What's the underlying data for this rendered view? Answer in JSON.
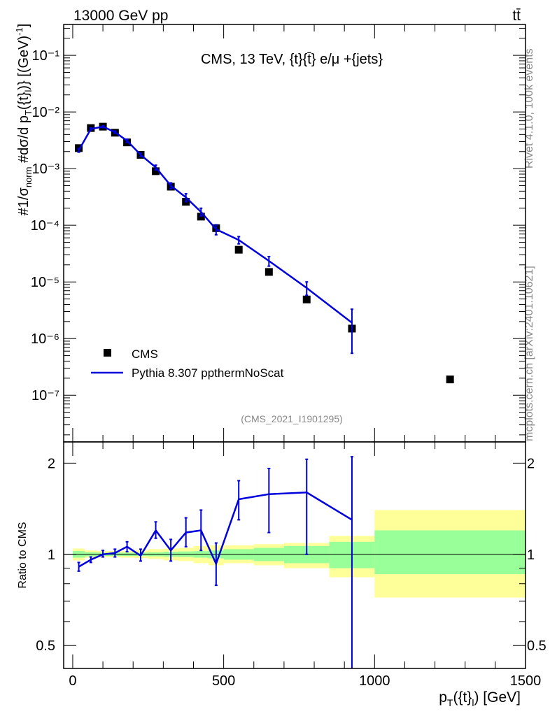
{
  "header": {
    "process": "13000 GeV pp",
    "final_state": "tt̄"
  },
  "side": {
    "rivet": "Rivet 4.1.0,  100k events",
    "source": "mcplots.cern.ch [arXiv:2401.10621]"
  },
  "chart_data": {
    "type": "line",
    "title": "CMS, 13 TeV, {t}{t̄} e/μ +{jets}",
    "analysis_id": "(CMS_2021_I1901295)",
    "xlabel": "p_T({t}_l) [GeV]",
    "ylabel": "#1/σ_norm #dσ/d p_T({t}_l)} [(GeV)^-1]",
    "xlim": [
      -30,
      1500
    ],
    "xticks": [
      "0",
      "500",
      "1000",
      "1500"
    ],
    "main": {
      "yscale": "log",
      "ylim": [
        1.5e-08,
        0.35
      ],
      "yticks": [
        "10⁻⁷",
        "10⁻⁶",
        "10⁻⁵",
        "10⁻⁴",
        "10⁻³",
        "10⁻²",
        "10⁻¹"
      ],
      "legend": {
        "position": "bottom-left",
        "entries": [
          "CMS",
          "Pythia 8.307 ppthermNoScat"
        ]
      },
      "data": {
        "name": "CMS",
        "points": [
          {
            "x": 20,
            "y": 0.0023
          },
          {
            "x": 60,
            "y": 0.0052
          },
          {
            "x": 100,
            "y": 0.0055
          },
          {
            "x": 140,
            "y": 0.0043
          },
          {
            "x": 180,
            "y": 0.0029
          },
          {
            "x": 225,
            "y": 0.00175
          },
          {
            "x": 275,
            "y": 0.0009
          },
          {
            "x": 325,
            "y": 0.00048
          },
          {
            "x": 375,
            "y": 0.00026
          },
          {
            "x": 425,
            "y": 0.000142
          },
          {
            "x": 475,
            "y": 8.9e-05
          },
          {
            "x": 550,
            "y": 3.7e-05
          },
          {
            "x": 650,
            "y": 1.5e-05
          },
          {
            "x": 775,
            "y": 4.9e-06
          },
          {
            "x": 925,
            "y": 1.5e-06
          },
          {
            "x": 1250,
            "y": 1.9e-07
          }
        ]
      },
      "mc": {
        "name": "Pythia 8.307 ppthermNoScat",
        "points": [
          {
            "x": 20,
            "y": 0.0021,
            "lo": 0.00195,
            "hi": 0.00225
          },
          {
            "x": 60,
            "y": 0.005,
            "lo": 0.0048,
            "hi": 0.0052
          },
          {
            "x": 100,
            "y": 0.0055,
            "lo": 0.0053,
            "hi": 0.0057
          },
          {
            "x": 140,
            "y": 0.0044,
            "lo": 0.0042,
            "hi": 0.0046
          },
          {
            "x": 180,
            "y": 0.0031,
            "lo": 0.0029,
            "hi": 0.0033
          },
          {
            "x": 225,
            "y": 0.00175,
            "lo": 0.00163,
            "hi": 0.00187
          },
          {
            "x": 275,
            "y": 0.00105,
            "lo": 0.00095,
            "hi": 0.00115
          },
          {
            "x": 325,
            "y": 0.0005,
            "lo": 0.00044,
            "hi": 0.00056
          },
          {
            "x": 375,
            "y": 0.00031,
            "lo": 0.00026,
            "hi": 0.00036
          },
          {
            "x": 425,
            "y": 0.000172,
            "lo": 0.000145,
            "hi": 0.0002
          },
          {
            "x": 475,
            "y": 8.5e-05,
            "lo": 6.8e-05,
            "hi": 0.000102
          },
          {
            "x": 550,
            "y": 5.5e-05,
            "lo": 4.7e-05,
            "hi": 6.3e-05
          },
          {
            "x": 650,
            "y": 2.35e-05,
            "lo": 1.9e-05,
            "hi": 2.8e-05
          },
          {
            "x": 775,
            "y": 7.8e-06,
            "lo": 5.8e-06,
            "hi": 1e-05
          },
          {
            "x": 925,
            "y": 1.9e-06,
            "lo": 5.5e-07,
            "hi": 3.3e-06
          }
        ]
      }
    },
    "ratio": {
      "ylabel": "Ratio to CMS",
      "yscale": "log",
      "ylim": [
        0.42,
        2.35
      ],
      "yticks": [
        "0.5",
        "1",
        "2"
      ],
      "bands": [
        {
          "x0": 0,
          "x1": 40,
          "stat_lo": 0.975,
          "stat_hi": 1.025,
          "tot_lo": 0.955,
          "tot_hi": 1.045
        },
        {
          "x0": 40,
          "x1": 80,
          "stat_lo": 0.985,
          "stat_hi": 1.015,
          "tot_lo": 0.975,
          "tot_hi": 1.03
        },
        {
          "x0": 80,
          "x1": 120,
          "stat_lo": 0.988,
          "stat_hi": 1.012,
          "tot_lo": 0.978,
          "tot_hi": 1.025
        },
        {
          "x0": 120,
          "x1": 160,
          "stat_lo": 0.988,
          "stat_hi": 1.012,
          "tot_lo": 0.978,
          "tot_hi": 1.025
        },
        {
          "x0": 160,
          "x1": 200,
          "stat_lo": 0.988,
          "stat_hi": 1.012,
          "tot_lo": 0.975,
          "tot_hi": 1.025
        },
        {
          "x0": 200,
          "x1": 250,
          "stat_lo": 0.988,
          "stat_hi": 1.012,
          "tot_lo": 0.972,
          "tot_hi": 1.03
        },
        {
          "x0": 250,
          "x1": 300,
          "stat_lo": 0.985,
          "stat_hi": 1.015,
          "tot_lo": 0.965,
          "tot_hi": 1.04
        },
        {
          "x0": 300,
          "x1": 350,
          "stat_lo": 0.982,
          "stat_hi": 1.02,
          "tot_lo": 0.955,
          "tot_hi": 1.045
        },
        {
          "x0": 350,
          "x1": 400,
          "stat_lo": 0.98,
          "stat_hi": 1.022,
          "tot_lo": 0.95,
          "tot_hi": 1.05
        },
        {
          "x0": 400,
          "x1": 450,
          "stat_lo": 0.975,
          "stat_hi": 1.025,
          "tot_lo": 0.935,
          "tot_hi": 1.065
        },
        {
          "x0": 450,
          "x1": 500,
          "stat_lo": 0.97,
          "stat_hi": 1.03,
          "tot_lo": 0.92,
          "tot_hi": 1.07
        },
        {
          "x0": 500,
          "x1": 600,
          "stat_lo": 0.96,
          "stat_hi": 1.04,
          "tot_lo": 0.935,
          "tot_hi": 1.07
        },
        {
          "x0": 600,
          "x1": 700,
          "stat_lo": 0.95,
          "stat_hi": 1.05,
          "tot_lo": 0.92,
          "tot_hi": 1.08
        },
        {
          "x0": 700,
          "x1": 850,
          "stat_lo": 0.935,
          "stat_hi": 1.065,
          "tot_lo": 0.9,
          "tot_hi": 1.09
        },
        {
          "x0": 850,
          "x1": 1000,
          "stat_lo": 0.9,
          "stat_hi": 1.1,
          "tot_lo": 0.84,
          "tot_hi": 1.15
        },
        {
          "x0": 1000,
          "x1": 1500,
          "stat_lo": 0.86,
          "stat_hi": 1.2,
          "tot_lo": 0.72,
          "tot_hi": 1.4
        }
      ],
      "mc": [
        {
          "x": 20,
          "y": 0.91,
          "lo": 0.88,
          "hi": 0.94
        },
        {
          "x": 60,
          "y": 0.96,
          "lo": 0.94,
          "hi": 0.98
        },
        {
          "x": 100,
          "y": 1.0,
          "lo": 0.98,
          "hi": 1.03
        },
        {
          "x": 140,
          "y": 1.01,
          "lo": 0.98,
          "hi": 1.04
        },
        {
          "x": 180,
          "y": 1.06,
          "lo": 1.02,
          "hi": 1.1
        },
        {
          "x": 225,
          "y": 0.99,
          "lo": 0.95,
          "hi": 1.04
        },
        {
          "x": 275,
          "y": 1.2,
          "lo": 1.13,
          "hi": 1.28
        },
        {
          "x": 325,
          "y": 1.03,
          "lo": 0.95,
          "hi": 1.12
        },
        {
          "x": 375,
          "y": 1.18,
          "lo": 1.06,
          "hi": 1.32
        },
        {
          "x": 425,
          "y": 1.2,
          "lo": 1.03,
          "hi": 1.4
        },
        {
          "x": 475,
          "y": 0.93,
          "lo": 0.79,
          "hi": 1.09
        },
        {
          "x": 550,
          "y": 1.52,
          "lo": 1.3,
          "hi": 1.75
        },
        {
          "x": 650,
          "y": 1.58,
          "lo": 1.18,
          "hi": 1.92
        },
        {
          "x": 775,
          "y": 1.6,
          "lo": 1.0,
          "hi": 2.06
        },
        {
          "x": 925,
          "y": 1.3,
          "lo": 0.4,
          "hi": 2.1
        }
      ]
    },
    "colors": {
      "data": "#000000",
      "mc": "#0000dd",
      "stat_band": "#99ff99",
      "total_band": "#ffff99",
      "text_grey": "#888888"
    }
  }
}
